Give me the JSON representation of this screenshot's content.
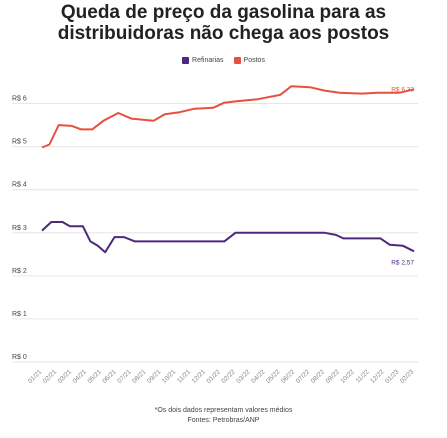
{
  "title_line1": "Queda de preço da gasolina para as",
  "title_line2": "distribuidoras não chega aos postos",
  "footnote_line1": "*Os dois dados representam valores médios",
  "footnote_line2": "Fontes: Petrobras/ANP",
  "colors": {
    "refinarias": "#4b2a7b",
    "postos": "#e8503e",
    "grid": "#e6e6e6",
    "axis_text": "#444444"
  },
  "chart_data": {
    "type": "line",
    "title": "Queda de preço da gasolina para as distribuidoras não chega aos postos",
    "y_tick_labels": [
      "R$ 0",
      "R$ 1",
      "R$ 2",
      "R$ 3",
      "R$ 4",
      "R$ 5",
      "R$ 6"
    ],
    "ylim": [
      0,
      6.5
    ],
    "xlim": [
      0,
      1
    ],
    "x_tick_labels": [
      "01/21",
      "02/21",
      "03/21",
      "04/21",
      "05/21",
      "06/21",
      "07/21",
      "08/21",
      "09/21",
      "10/21",
      "11/21",
      "12/21",
      "01/22",
      "02/22",
      "03/22",
      "04/22",
      "05/22",
      "06/22",
      "07/22",
      "08/22",
      "09/22",
      "10/22",
      "11/22",
      "12/22",
      "01/23",
      "02/23"
    ],
    "grid": true,
    "legend_position": "top-center",
    "series": [
      {
        "name": "Refinarias",
        "end_label": "R$ 2,57",
        "points": [
          [
            0.0,
            3.05
          ],
          [
            0.025,
            3.25
          ],
          [
            0.055,
            3.25
          ],
          [
            0.075,
            3.15
          ],
          [
            0.11,
            3.15
          ],
          [
            0.13,
            2.8
          ],
          [
            0.15,
            2.7
          ],
          [
            0.17,
            2.55
          ],
          [
            0.195,
            2.9
          ],
          [
            0.22,
            2.9
          ],
          [
            0.25,
            2.8
          ],
          [
            0.3,
            2.8
          ],
          [
            0.36,
            2.8
          ],
          [
            0.42,
            2.8
          ],
          [
            0.49,
            2.8
          ],
          [
            0.52,
            3.0
          ],
          [
            0.58,
            3.0
          ],
          [
            0.65,
            3.0
          ],
          [
            0.76,
            3.0
          ],
          [
            0.79,
            2.95
          ],
          [
            0.81,
            2.87
          ],
          [
            0.88,
            2.87
          ],
          [
            0.91,
            2.87
          ],
          [
            0.935,
            2.72
          ],
          [
            0.97,
            2.7
          ],
          [
            1.0,
            2.57
          ]
        ]
      },
      {
        "name": "Postos",
        "end_label": "R$ 6,33",
        "points": [
          [
            0.0,
            4.98
          ],
          [
            0.02,
            5.05
          ],
          [
            0.045,
            5.5
          ],
          [
            0.08,
            5.48
          ],
          [
            0.105,
            5.4
          ],
          [
            0.135,
            5.4
          ],
          [
            0.165,
            5.6
          ],
          [
            0.205,
            5.78
          ],
          [
            0.24,
            5.65
          ],
          [
            0.3,
            5.6
          ],
          [
            0.33,
            5.75
          ],
          [
            0.37,
            5.8
          ],
          [
            0.41,
            5.88
          ],
          [
            0.46,
            5.9
          ],
          [
            0.49,
            6.02
          ],
          [
            0.52,
            6.05
          ],
          [
            0.58,
            6.1
          ],
          [
            0.64,
            6.2
          ],
          [
            0.67,
            6.4
          ],
          [
            0.72,
            6.38
          ],
          [
            0.76,
            6.3
          ],
          [
            0.8,
            6.25
          ],
          [
            0.86,
            6.23
          ],
          [
            0.9,
            6.25
          ],
          [
            0.96,
            6.25
          ],
          [
            1.0,
            6.33
          ]
        ]
      }
    ]
  }
}
